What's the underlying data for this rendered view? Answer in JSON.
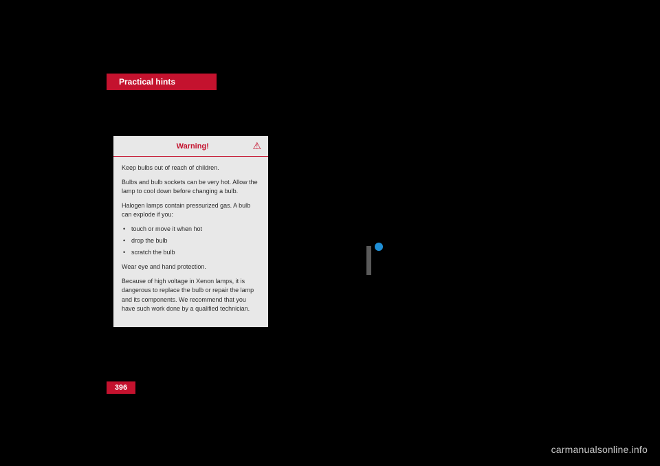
{
  "header": {
    "section_title": "Practical hints"
  },
  "warning": {
    "title": "Warning!",
    "icon": "⚠",
    "p1": "Keep bulbs out of reach of children.",
    "p2": "Bulbs and bulb sockets can be very hot. Allow the lamp to cool down before changing a bulb.",
    "p3": "Halogen lamps contain pressurized gas. A bulb can explode if you:",
    "bullets": {
      "b1": "touch or move it when hot",
      "b2": "drop the bulb",
      "b3": "scratch the bulb"
    },
    "p4": "Wear eye and hand protection.",
    "p5": "Because of high voltage in Xenon lamps, it is dangerous to replace the bulb or repair the lamp and its components. We recommend that you have such work done by a qualified technician."
  },
  "page_number": "396",
  "watermark": "carmanualsonline.info",
  "colors": {
    "background": "#000000",
    "brand_red": "#c4122e",
    "box_bg": "#e8e8e8",
    "side_bar": "#5a5a5a",
    "blue_dot": "#1f8fd6",
    "watermark_text": "#c9c9c9"
  }
}
